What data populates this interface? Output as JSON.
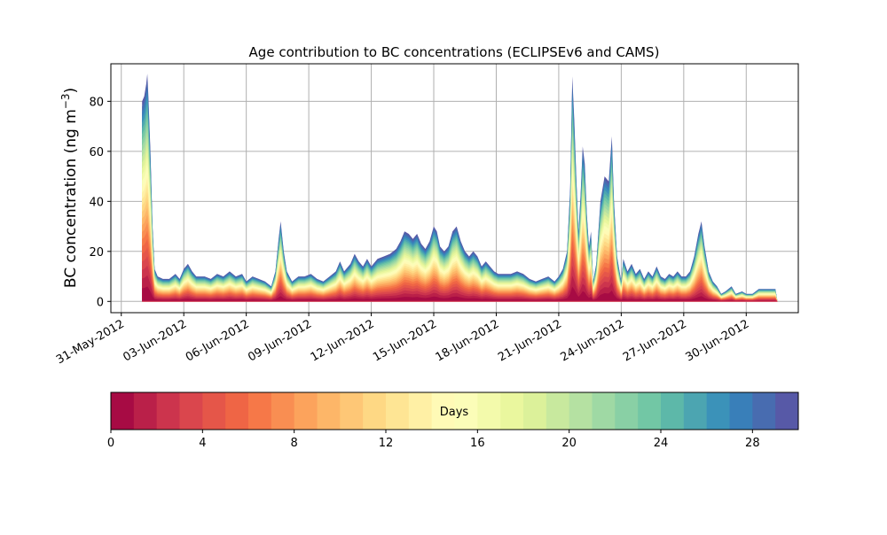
{
  "chart_data": {
    "type": "area",
    "title": "Age contribution to BC concentrations (ECLIPSEv6 and CAMS)",
    "ylabel_main": "BC concentration (ng m",
    "ylabel_sup": "−3",
    "ylabel_close": ")",
    "xlabel": "",
    "ylim": [
      -4.5,
      95
    ],
    "xlim_days": [
      -0.5,
      32.5
    ],
    "grid": true,
    "y_ticks": [
      0,
      20,
      40,
      60,
      80
    ],
    "x_ticks": [
      {
        "day": 0,
        "label": "31-May-2012"
      },
      {
        "day": 3,
        "label": "03-Jun-2012"
      },
      {
        "day": 6,
        "label": "06-Jun-2012"
      },
      {
        "day": 9,
        "label": "09-Jun-2012"
      },
      {
        "day": 12,
        "label": "12-Jun-2012"
      },
      {
        "day": 15,
        "label": "15-Jun-2012"
      },
      {
        "day": 18,
        "label": "18-Jun-2012"
      },
      {
        "day": 21,
        "label": "21-Jun-2012"
      },
      {
        "day": 24,
        "label": "24-Jun-2012"
      },
      {
        "day": 27,
        "label": "27-Jun-2012"
      },
      {
        "day": 30,
        "label": "30-Jun-2012"
      }
    ],
    "total_concentration_series": [
      [
        1.0,
        0
      ],
      [
        1.0,
        80
      ],
      [
        1.1,
        82
      ],
      [
        1.2,
        87
      ],
      [
        1.25,
        91
      ],
      [
        1.3,
        82
      ],
      [
        1.4,
        60
      ],
      [
        1.5,
        30
      ],
      [
        1.6,
        13
      ],
      [
        1.75,
        10
      ],
      [
        2.0,
        9
      ],
      [
        2.3,
        9
      ],
      [
        2.6,
        11
      ],
      [
        2.8,
        9
      ],
      [
        3.0,
        13
      ],
      [
        3.2,
        15
      ],
      [
        3.4,
        12
      ],
      [
        3.6,
        10
      ],
      [
        3.8,
        10
      ],
      [
        4.0,
        10
      ],
      [
        4.3,
        9
      ],
      [
        4.6,
        11
      ],
      [
        4.9,
        10
      ],
      [
        5.2,
        12
      ],
      [
        5.5,
        10
      ],
      [
        5.8,
        11
      ],
      [
        6.0,
        8
      ],
      [
        6.3,
        10
      ],
      [
        6.6,
        9
      ],
      [
        6.9,
        8
      ],
      [
        7.2,
        6
      ],
      [
        7.4,
        12
      ],
      [
        7.55,
        25
      ],
      [
        7.65,
        32
      ],
      [
        7.8,
        20
      ],
      [
        7.95,
        12
      ],
      [
        8.2,
        8
      ],
      [
        8.5,
        10
      ],
      [
        8.8,
        10
      ],
      [
        9.1,
        11
      ],
      [
        9.4,
        9
      ],
      [
        9.7,
        8
      ],
      [
        10.0,
        10
      ],
      [
        10.3,
        12
      ],
      [
        10.5,
        16
      ],
      [
        10.7,
        12
      ],
      [
        11.0,
        15
      ],
      [
        11.2,
        19
      ],
      [
        11.4,
        16
      ],
      [
        11.6,
        14
      ],
      [
        11.8,
        17
      ],
      [
        12.0,
        14
      ],
      [
        12.3,
        17
      ],
      [
        12.6,
        18
      ],
      [
        12.9,
        19
      ],
      [
        13.2,
        21
      ],
      [
        13.4,
        24
      ],
      [
        13.6,
        28
      ],
      [
        13.8,
        27
      ],
      [
        14.0,
        25
      ],
      [
        14.2,
        27
      ],
      [
        14.4,
        23
      ],
      [
        14.6,
        21
      ],
      [
        14.8,
        24
      ],
      [
        15.0,
        30
      ],
      [
        15.15,
        28
      ],
      [
        15.3,
        22
      ],
      [
        15.5,
        20
      ],
      [
        15.7,
        22
      ],
      [
        15.9,
        28
      ],
      [
        16.1,
        30
      ],
      [
        16.3,
        24
      ],
      [
        16.5,
        20
      ],
      [
        16.7,
        18
      ],
      [
        16.9,
        20
      ],
      [
        17.1,
        18
      ],
      [
        17.3,
        14
      ],
      [
        17.5,
        16
      ],
      [
        17.7,
        14
      ],
      [
        17.9,
        12
      ],
      [
        18.1,
        11
      ],
      [
        18.4,
        11
      ],
      [
        18.7,
        11
      ],
      [
        19.0,
        12
      ],
      [
        19.3,
        11
      ],
      [
        19.6,
        9
      ],
      [
        19.9,
        8
      ],
      [
        20.2,
        9
      ],
      [
        20.5,
        10
      ],
      [
        20.8,
        8
      ],
      [
        21.0,
        10
      ],
      [
        21.2,
        13
      ],
      [
        21.4,
        20
      ],
      [
        21.55,
        45
      ],
      [
        21.65,
        90
      ],
      [
        21.75,
        72
      ],
      [
        21.85,
        48
      ],
      [
        21.95,
        28
      ],
      [
        22.05,
        43
      ],
      [
        22.15,
        62
      ],
      [
        22.25,
        55
      ],
      [
        22.35,
        35
      ],
      [
        22.45,
        22
      ],
      [
        22.55,
        28
      ],
      [
        22.65,
        8
      ],
      [
        22.8,
        15
      ],
      [
        23.0,
        40
      ],
      [
        23.2,
        50
      ],
      [
        23.4,
        48
      ],
      [
        23.5,
        60
      ],
      [
        23.55,
        66
      ],
      [
        23.65,
        40
      ],
      [
        23.8,
        18
      ],
      [
        24.0,
        8
      ],
      [
        24.1,
        17
      ],
      [
        24.3,
        12
      ],
      [
        24.5,
        15
      ],
      [
        24.7,
        11
      ],
      [
        24.9,
        13
      ],
      [
        25.1,
        9
      ],
      [
        25.3,
        12
      ],
      [
        25.5,
        10
      ],
      [
        25.7,
        14
      ],
      [
        25.9,
        10
      ],
      [
        26.1,
        9
      ],
      [
        26.3,
        11
      ],
      [
        26.5,
        10
      ],
      [
        26.7,
        12
      ],
      [
        26.9,
        10
      ],
      [
        27.1,
        10
      ],
      [
        27.3,
        12
      ],
      [
        27.5,
        18
      ],
      [
        27.7,
        27
      ],
      [
        27.85,
        32
      ],
      [
        28.0,
        22
      ],
      [
        28.2,
        12
      ],
      [
        28.4,
        8
      ],
      [
        28.6,
        6
      ],
      [
        28.8,
        3
      ],
      [
        29.0,
        4
      ],
      [
        29.3,
        6
      ],
      [
        29.5,
        3
      ],
      [
        29.8,
        4
      ],
      [
        30.0,
        3
      ],
      [
        30.3,
        3
      ],
      [
        30.6,
        5
      ],
      [
        30.9,
        5
      ],
      [
        31.2,
        5
      ],
      [
        31.4,
        5
      ],
      [
        31.5,
        0
      ]
    ],
    "colorbar": {
      "label": "Days",
      "range": [
        0,
        30
      ],
      "ticks": [
        0,
        4,
        8,
        12,
        16,
        20,
        24,
        28
      ],
      "bins": 30,
      "colormap": "Spectral"
    },
    "palette": {
      "background": "#ffffff",
      "grid": "#b0b0b0",
      "axis": "#000000"
    }
  }
}
